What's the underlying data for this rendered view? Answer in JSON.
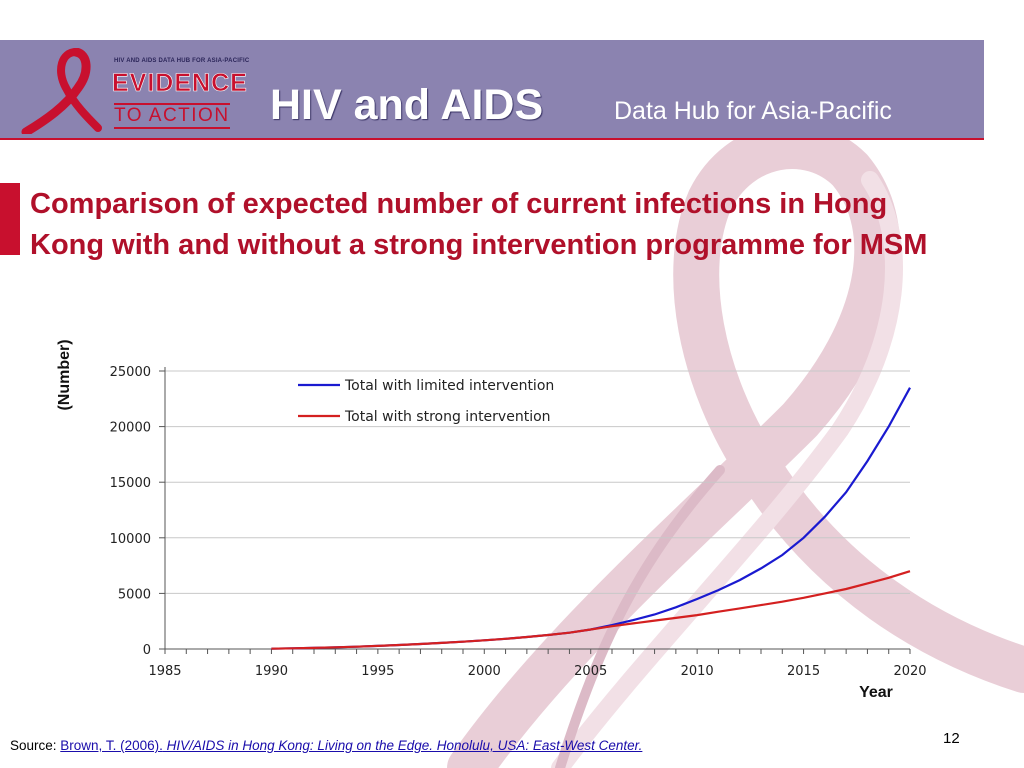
{
  "header": {
    "logo_caption": "HIV AND AIDS DATA HUB FOR ASIA-PACIFIC",
    "logo_line1": "EVIDENCE",
    "logo_line2": "TO ACTION",
    "title_main": "HIV and AIDS",
    "title_sub": "Data Hub for Asia-Pacific"
  },
  "slide": {
    "title": "Comparison of expected number of current infections in Hong Kong with and without a strong intervention programme for MSM",
    "page_number": "12"
  },
  "colors": {
    "header_bg": "#8b83b0",
    "accent_red": "#c8102e",
    "title_red": "#b0102a",
    "series_limited": "#1a1ad0",
    "series_strong": "#d42020",
    "ribbon": "#e7c9d3"
  },
  "source": {
    "label": "Source:",
    "author_link": "Brown, T. (2006).",
    "citation_link": " HIV/AIDS in Hong Kong: Living on the Edge. Honolulu, USA: East-West Center."
  },
  "chart_data": {
    "type": "line",
    "title": "",
    "xlabel": "Year",
    "ylabel": "(Number)",
    "xlim": [
      1985,
      2020
    ],
    "ylim": [
      0,
      25000
    ],
    "xticks": [
      1985,
      1990,
      1995,
      2000,
      2005,
      2010,
      2015,
      2020
    ],
    "yticks": [
      0,
      5000,
      10000,
      15000,
      20000,
      25000
    ],
    "grid": "horizontal",
    "legend_position": "top-left",
    "x": [
      1990,
      1991,
      1992,
      1993,
      1994,
      1995,
      1996,
      1997,
      1998,
      1999,
      2000,
      2001,
      2002,
      2003,
      2004,
      2005,
      2006,
      2007,
      2008,
      2009,
      2010,
      2011,
      2012,
      2013,
      2014,
      2015,
      2016,
      2017,
      2018,
      2019,
      2020
    ],
    "series": [
      {
        "name": "Total with limited intervention",
        "color": "#1a1ad0",
        "values": [
          30,
          60,
          100,
          150,
          210,
          280,
          360,
          450,
          550,
          660,
          780,
          920,
          1080,
          1260,
          1470,
          1750,
          2150,
          2600,
          3100,
          3750,
          4500,
          5300,
          6200,
          7250,
          8450,
          10000,
          11900,
          14100,
          16900,
          20000,
          23500
        ]
      },
      {
        "name": "Total with strong intervention",
        "color": "#d42020",
        "values": [
          30,
          60,
          100,
          150,
          210,
          280,
          360,
          450,
          550,
          660,
          780,
          920,
          1080,
          1260,
          1470,
          1750,
          2050,
          2300,
          2550,
          2800,
          3050,
          3350,
          3650,
          3950,
          4250,
          4600,
          5000,
          5400,
          5900,
          6400,
          7000
        ]
      }
    ]
  }
}
